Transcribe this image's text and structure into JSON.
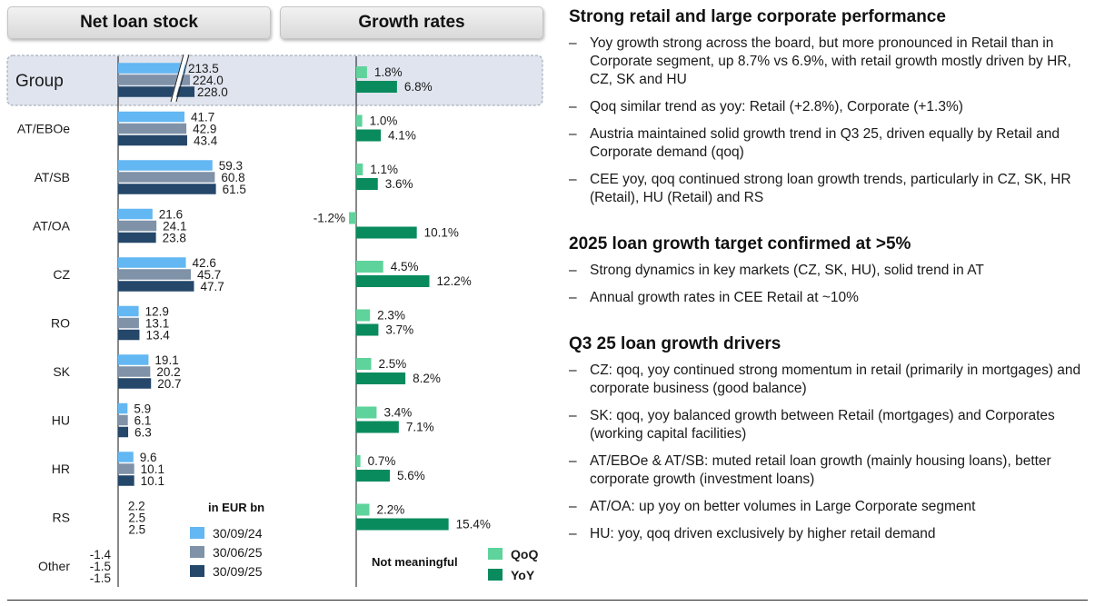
{
  "headers": {
    "loan_stock": "Net loan stock",
    "growth": "Growth rates"
  },
  "colors": {
    "sep24": "#63b7f2",
    "jun25": "#7f92a8",
    "sep25": "#24476a",
    "qoq": "#5ed39b",
    "yoy": "#098b5e"
  },
  "chart_data": {
    "type": "bar",
    "orientation": "horizontal",
    "categories": [
      "Group",
      "AT/EBOe",
      "AT/SB",
      "AT/OA",
      "CZ",
      "RO",
      "SK",
      "HU",
      "HR",
      "RS",
      "Other"
    ],
    "loan_stock": {
      "unit_label": "in EUR bn",
      "series": [
        {
          "name": "30/09/24",
          "values": [
            213.5,
            41.7,
            59.3,
            21.6,
            42.6,
            12.9,
            19.1,
            5.9,
            9.6,
            2.2,
            -1.4
          ]
        },
        {
          "name": "30/06/25",
          "values": [
            224.0,
            42.9,
            60.8,
            24.1,
            45.7,
            13.1,
            20.2,
            6.1,
            10.1,
            2.5,
            -1.5
          ]
        },
        {
          "name": "30/09/25",
          "values": [
            228.0,
            43.4,
            61.5,
            23.8,
            47.7,
            13.4,
            20.7,
            6.3,
            10.1,
            2.5,
            -1.5
          ]
        }
      ],
      "labels": [
        [
          "213.5",
          "41.7",
          "59.3",
          "21.6",
          "42.6",
          "12.9",
          "19.1",
          "5.9",
          "9.6",
          "2.2",
          "-1.4"
        ],
        [
          "224.0",
          "42.9",
          "60.8",
          "24.1",
          "45.7",
          "13.1",
          "20.2",
          "6.1",
          "10.1",
          "2.5",
          "-1.5"
        ],
        [
          "228.0",
          "43.4",
          "61.5",
          "23.8",
          "47.7",
          "13.4",
          "20.7",
          "6.3",
          "10.1",
          "2.5",
          "-1.5"
        ]
      ],
      "axis_break_on": "Group"
    },
    "growth_rates": {
      "series": [
        {
          "name": "QoQ",
          "values": [
            1.8,
            1.0,
            1.1,
            -1.2,
            4.5,
            2.3,
            2.5,
            3.4,
            0.7,
            2.2,
            null
          ],
          "labels": [
            "1.8%",
            "1.0%",
            "1.1%",
            "-1.2%",
            "4.5%",
            "2.3%",
            "2.5%",
            "3.4%",
            "0.7%",
            "2.2%",
            ""
          ]
        },
        {
          "name": "YoY",
          "values": [
            6.8,
            4.1,
            3.6,
            10.1,
            12.2,
            3.7,
            8.2,
            7.1,
            5.6,
            15.4,
            null
          ],
          "labels": [
            "6.8%",
            "4.1%",
            "3.6%",
            "10.1%",
            "12.2%",
            "3.7%",
            "8.2%",
            "7.1%",
            "5.6%",
            "15.4%",
            ""
          ]
        }
      ],
      "other_note": "Not meaningful"
    }
  },
  "right": {
    "sections": [
      {
        "title": "Strong retail and large corporate performance",
        "bullets": [
          "Yoy growth strong across the board, but more pronounced in Retail than in Corporate segment, up 8.7% vs 6.9%, with retail growth mostly driven by HR, CZ, SK and HU",
          "Qoq similar trend as yoy: Retail (+2.8%), Corporate (+1.3%)",
          "Austria maintained solid growth trend in Q3 25, driven equally by Retail and Corporate demand (qoq)",
          "CEE yoy, qoq continued strong loan growth trends, particularly in CZ, SK, HR (Retail), HU (Retail) and RS"
        ]
      },
      {
        "title": "2025 loan growth target confirmed at >5%",
        "bullets": [
          "Strong dynamics in key markets (CZ, SK, HU), solid trend in AT",
          "Annual growth rates in CEE Retail at ~10%"
        ]
      },
      {
        "title": "Q3 25 loan growth drivers",
        "bullets": [
          "CZ: qoq, yoy continued strong momentum in retail (primarily in mortgages) and corporate business (good balance)",
          "SK: qoq, yoy balanced growth between Retail (mortgages) and Corporates (working capital facilities)",
          "AT/EBOe & AT/SB: muted retail loan growth (mainly housing loans), better corporate growth (investment loans)",
          "AT/OA: up yoy on better volumes in Large Corporate segment",
          "HU: yoy, qoq driven exclusively by higher retail demand"
        ]
      }
    ],
    "dash": "–"
  }
}
